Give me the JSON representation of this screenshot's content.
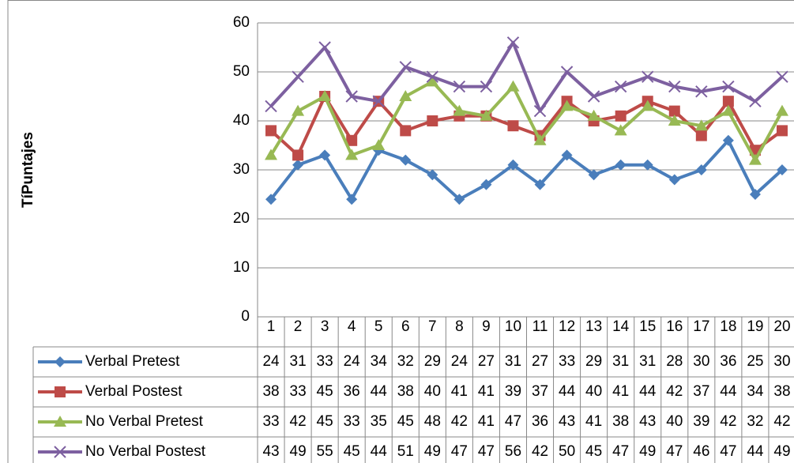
{
  "chart_data": {
    "type": "line",
    "y_label": "TíPuntajes",
    "categories": [
      "1",
      "2",
      "3",
      "4",
      "5",
      "6",
      "7",
      "8",
      "9",
      "10",
      "11",
      "12",
      "13",
      "14",
      "15",
      "16",
      "17",
      "18",
      "19",
      "20"
    ],
    "series": [
      {
        "name": "Verbal Pretest",
        "color": "#4a7ebb",
        "marker": "diamond",
        "values": [
          24,
          31,
          33,
          24,
          34,
          32,
          29,
          24,
          27,
          31,
          27,
          33,
          29,
          31,
          31,
          28,
          30,
          36,
          25,
          30
        ]
      },
      {
        "name": "Verbal Postest",
        "color": "#be4b48",
        "marker": "square",
        "values": [
          38,
          33,
          45,
          36,
          44,
          38,
          40,
          41,
          41,
          39,
          37,
          44,
          40,
          41,
          44,
          42,
          37,
          44,
          34,
          38
        ]
      },
      {
        "name": "No Verbal Pretest",
        "color": "#98b954",
        "marker": "triangle",
        "values": [
          33,
          42,
          45,
          33,
          35,
          45,
          48,
          42,
          41,
          47,
          36,
          43,
          41,
          38,
          43,
          40,
          39,
          42,
          32,
          42
        ]
      },
      {
        "name": "No Verbal Postest",
        "color": "#7d60a0",
        "marker": "x",
        "values": [
          43,
          49,
          55,
          45,
          44,
          51,
          49,
          47,
          47,
          56,
          42,
          50,
          45,
          47,
          49,
          47,
          46,
          47,
          44,
          49
        ]
      }
    ],
    "ylim": [
      0,
      60
    ],
    "yticks": [
      0,
      10,
      20,
      30,
      40,
      50,
      60
    ],
    "grid": true
  }
}
